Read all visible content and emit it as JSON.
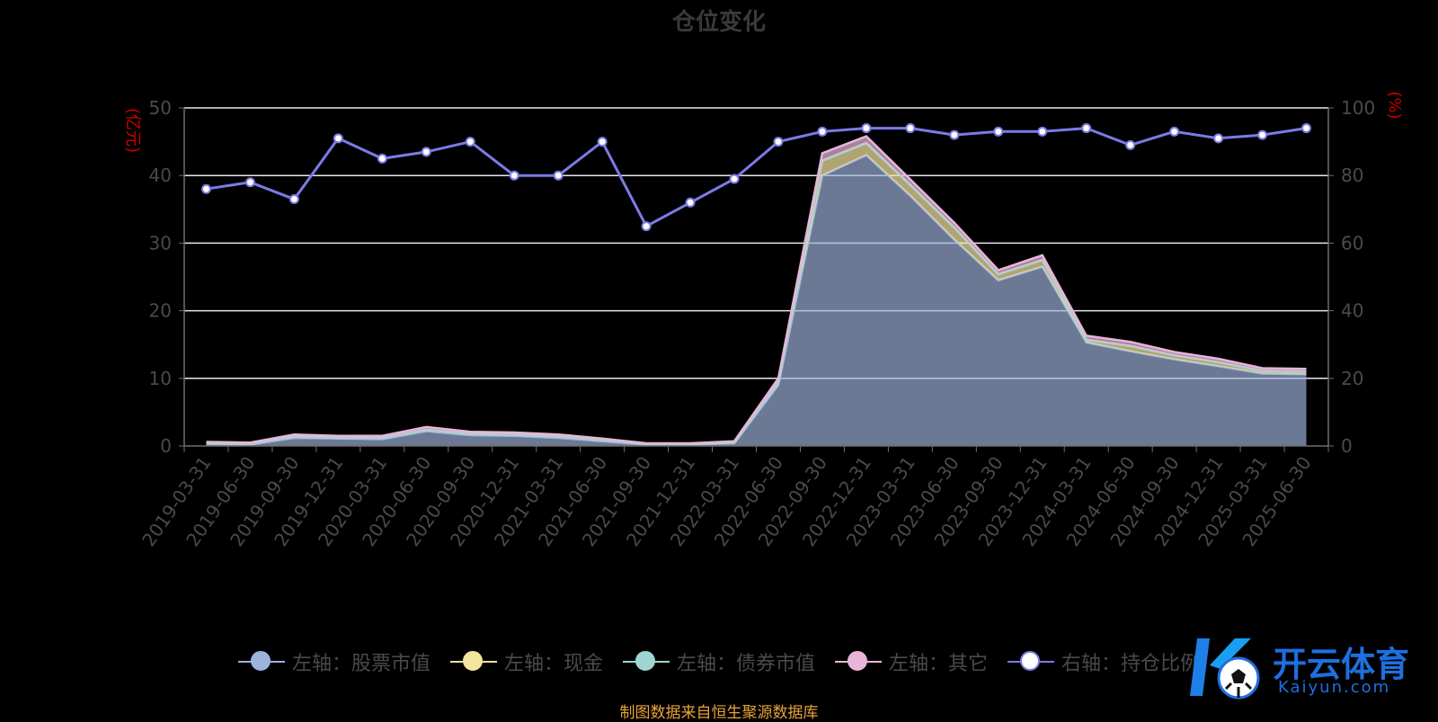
{
  "chart_data": {
    "type": "area",
    "title": "仓位变化",
    "left_axis": {
      "unit": "(亿元)",
      "ylim": [
        0,
        50
      ],
      "ticks": [
        0,
        10,
        20,
        30,
        40,
        50
      ]
    },
    "right_axis": {
      "unit": "(%)",
      "ylim": [
        0,
        100
      ],
      "ticks": [
        0,
        20,
        40,
        60,
        80,
        100
      ]
    },
    "grid": true,
    "legend_position": "bottom",
    "categories": [
      "2019-03-31",
      "2019-06-30",
      "2019-09-30",
      "2019-12-31",
      "2020-03-31",
      "2020-06-30",
      "2020-09-30",
      "2020-12-31",
      "2021-03-31",
      "2021-06-30",
      "2021-09-30",
      "2021-12-31",
      "2022-03-31",
      "2022-06-30",
      "2022-09-30",
      "2022-12-31",
      "2023-03-31",
      "2023-06-30",
      "2023-09-30",
      "2023-12-31",
      "2024-03-31",
      "2024-06-30",
      "2024-09-30",
      "2024-12-31",
      "2025-03-31",
      "2025-06-30"
    ],
    "series": [
      {
        "name": "左轴：股票市值",
        "axis": "left",
        "stack": true,
        "color": "#9db3dc",
        "values": [
          0.3,
          0.2,
          1.2,
          1.1,
          1.0,
          2.2,
          1.6,
          1.5,
          1.2,
          0.7,
          0.2,
          0.2,
          0.4,
          9.0,
          40.0,
          43.0,
          37.0,
          30.5,
          24.5,
          26.5,
          15.3,
          14.0,
          12.8,
          11.8,
          10.7,
          10.6
        ]
      },
      {
        "name": "左轴：现金",
        "axis": "left",
        "stack": true,
        "color": "#f5e3a0",
        "values": [
          0.1,
          0.1,
          0.2,
          0.1,
          0.2,
          0.2,
          0.2,
          0.2,
          0.2,
          0.2,
          0.1,
          0.1,
          0.1,
          0.4,
          2.2,
          1.8,
          1.6,
          1.8,
          0.9,
          1.0,
          0.4,
          0.8,
          0.6,
          0.6,
          0.4,
          0.4
        ]
      },
      {
        "name": "左轴：债券市值",
        "axis": "left",
        "stack": true,
        "color": "#9fd6d3",
        "values": [
          0,
          0,
          0,
          0,
          0,
          0,
          0,
          0,
          0,
          0,
          0,
          0,
          0,
          0,
          0,
          0,
          0,
          0,
          0,
          0,
          0,
          0,
          0,
          0,
          0,
          0
        ]
      },
      {
        "name": "左轴：其它",
        "axis": "left",
        "stack": true,
        "color": "#e8b5d8",
        "values": [
          0.2,
          0.2,
          0.3,
          0.3,
          0.3,
          0.4,
          0.3,
          0.3,
          0.3,
          0.2,
          0.1,
          0.1,
          0.2,
          0.6,
          1.1,
          1.0,
          0.8,
          0.7,
          0.6,
          0.7,
          0.6,
          0.6,
          0.5,
          0.5,
          0.4,
          0.4
        ]
      },
      {
        "name": "右轴：持仓比例",
        "axis": "right",
        "stack": false,
        "color": "#7b7be8",
        "values": [
          76,
          78,
          73,
          91,
          85,
          87,
          90,
          80,
          80,
          90,
          65,
          72,
          79,
          90,
          93,
          94,
          94,
          92,
          93,
          93,
          94,
          89,
          93,
          91,
          92,
          94
        ]
      }
    ]
  },
  "legend_icon": "circle-icon",
  "source_text": "制图数据来自恒生聚源数据库",
  "watermark": {
    "name": "开云体育",
    "domain": "Kaiyun.com",
    "icon": "soccer-ball-icon"
  }
}
